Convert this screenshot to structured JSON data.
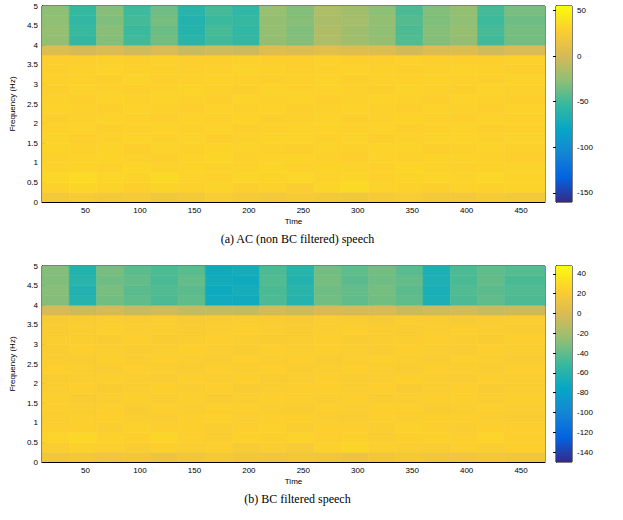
{
  "chart_data": [
    {
      "type": "heatmap",
      "title": "(a) AC (non BC filtered) speech",
      "xlabel": "Time",
      "ylabel": "Frequency (Hz)",
      "xlim": [
        10,
        472
      ],
      "xticks": [
        50,
        100,
        150,
        200,
        250,
        300,
        350,
        400,
        450
      ],
      "ylim": [
        0,
        5
      ],
      "yticks": [
        0,
        0.5,
        1,
        1.5,
        2,
        2.5,
        3,
        3.5,
        4,
        4.5,
        5
      ],
      "x_edges": [
        10,
        35,
        60,
        85,
        110,
        135,
        160,
        185,
        210,
        235,
        260,
        285,
        310,
        335,
        360,
        385,
        410,
        435,
        472
      ],
      "y_edges": [
        0,
        0.25,
        0.5,
        0.75,
        1,
        1.25,
        1.5,
        1.75,
        2,
        2.25,
        2.5,
        2.75,
        3,
        3.25,
        3.5,
        3.75,
        4,
        4.25,
        4.5,
        4.75,
        5
      ],
      "cells": [
        [
          22,
          24,
          21,
          23,
          20,
          22,
          25,
          23,
          21,
          24,
          22,
          20,
          23,
          25,
          22,
          21,
          24,
          22
        ],
        [
          30,
          33,
          31,
          29,
          32,
          30,
          31,
          28,
          30,
          27,
          33,
          35,
          31,
          30,
          29,
          31,
          30,
          32
        ],
        [
          34,
          36,
          33,
          32,
          35,
          31,
          30,
          33,
          32,
          34,
          31,
          33,
          30,
          32,
          33,
          31,
          34,
          32
        ],
        [
          31,
          32,
          30,
          33,
          31,
          32,
          30,
          31,
          33,
          30,
          32,
          31,
          30,
          33,
          31,
          30,
          32,
          31
        ],
        [
          30,
          31,
          32,
          30,
          29,
          31,
          33,
          30,
          31,
          32,
          30,
          29,
          31,
          30,
          32,
          31,
          30,
          29
        ],
        [
          32,
          30,
          31,
          29,
          31,
          30,
          32,
          31,
          30,
          29,
          31,
          30,
          32,
          31,
          29,
          30,
          31,
          30
        ],
        [
          31,
          29,
          30,
          32,
          30,
          31,
          29,
          30,
          32,
          31,
          30,
          31,
          29,
          30,
          31,
          32,
          30,
          31
        ],
        [
          30,
          31,
          29,
          30,
          32,
          30,
          31,
          29,
          30,
          31,
          32,
          30,
          31,
          29,
          30,
          31,
          29,
          30
        ],
        [
          29,
          30,
          31,
          30,
          29,
          31,
          30,
          32,
          29,
          30,
          31,
          29,
          30,
          32,
          30,
          29,
          31,
          30
        ],
        [
          31,
          30,
          29,
          31,
          30,
          29,
          31,
          30,
          31,
          29,
          30,
          31,
          30,
          29,
          31,
          30,
          29,
          31
        ],
        [
          30,
          29,
          31,
          30,
          31,
          30,
          29,
          31,
          30,
          31,
          29,
          30,
          31,
          30,
          29,
          31,
          30,
          29
        ],
        [
          29,
          31,
          30,
          29,
          30,
          32,
          30,
          29,
          31,
          30,
          31,
          30,
          29,
          31,
          30,
          29,
          31,
          30
        ],
        [
          30,
          30,
          29,
          31,
          29,
          30,
          31,
          30,
          29,
          30,
          31,
          29,
          30,
          30,
          31,
          30,
          29,
          31
        ],
        [
          29,
          30,
          31,
          30,
          30,
          29,
          30,
          31,
          30,
          29,
          30,
          31,
          30,
          29,
          30,
          31,
          30,
          29
        ],
        [
          28,
          29,
          30,
          29,
          30,
          28,
          29,
          30,
          29,
          28,
          30,
          29,
          28,
          30,
          29,
          28,
          29,
          30
        ],
        [
          5,
          0,
          3,
          -2,
          2,
          -5,
          -3,
          -4,
          6,
          4,
          8,
          6,
          5,
          -1,
          4,
          5,
          -2,
          2
        ],
        [
          -25,
          -55,
          -30,
          -50,
          -35,
          -60,
          -50,
          -55,
          -25,
          -30,
          -15,
          -20,
          -25,
          -45,
          -30,
          -25,
          -50,
          -35
        ],
        [
          -24,
          -53,
          -28,
          -52,
          -37,
          -62,
          -48,
          -56,
          -24,
          -31,
          -14,
          -21,
          -26,
          -46,
          -29,
          -24,
          -48,
          -34
        ],
        [
          -26,
          -56,
          -31,
          -49,
          -34,
          -63,
          -52,
          -54,
          -25,
          -29,
          -16,
          -19,
          -25,
          -44,
          -31,
          -26,
          -51,
          -36
        ],
        [
          -27,
          -54,
          -29,
          -51,
          -36,
          -61,
          -49,
          -57,
          -23,
          -30,
          -15,
          -20,
          -27,
          -47,
          -30,
          -25,
          -49,
          -33
        ]
      ],
      "colorbar": {
        "range": [
          -160,
          55
        ],
        "ticks": [
          -150,
          -100,
          -50,
          0,
          50
        ]
      }
    },
    {
      "type": "heatmap",
      "title": "(b) BC filtered speech",
      "xlabel": "Time",
      "ylabel": "Frequency (Hz)",
      "xlim": [
        10,
        472
      ],
      "xticks": [
        50,
        100,
        150,
        200,
        250,
        300,
        350,
        400,
        450
      ],
      "ylim": [
        0,
        5
      ],
      "yticks": [
        0,
        0.5,
        1,
        1.5,
        2,
        2.5,
        3,
        3.5,
        4,
        4.5,
        5
      ],
      "x_edges": [
        10,
        35,
        60,
        85,
        110,
        135,
        160,
        185,
        210,
        235,
        260,
        285,
        310,
        335,
        360,
        385,
        410,
        435,
        472
      ],
      "y_edges": [
        0,
        0.25,
        0.5,
        0.75,
        1,
        1.25,
        1.5,
        1.75,
        2,
        2.25,
        2.5,
        2.75,
        3,
        3.25,
        3.5,
        3.75,
        4,
        4.25,
        4.5,
        4.75,
        5
      ],
      "cells": [
        [
          14,
          16,
          13,
          15,
          12,
          14,
          17,
          15,
          13,
          16,
          14,
          12,
          15,
          17,
          14,
          13,
          16,
          14
        ],
        [
          22,
          25,
          23,
          21,
          24,
          22,
          23,
          20,
          22,
          19,
          25,
          27,
          23,
          22,
          21,
          23,
          22,
          24
        ],
        [
          26,
          28,
          25,
          24,
          27,
          23,
          22,
          25,
          24,
          26,
          23,
          25,
          22,
          24,
          25,
          23,
          26,
          24
        ],
        [
          23,
          24,
          22,
          25,
          23,
          24,
          22,
          23,
          25,
          22,
          24,
          23,
          22,
          25,
          23,
          22,
          24,
          23
        ],
        [
          22,
          23,
          24,
          22,
          21,
          23,
          25,
          22,
          23,
          24,
          22,
          21,
          23,
          22,
          24,
          23,
          22,
          21
        ],
        [
          24,
          22,
          23,
          21,
          23,
          22,
          24,
          23,
          22,
          21,
          23,
          22,
          24,
          23,
          21,
          22,
          23,
          22
        ],
        [
          23,
          21,
          22,
          24,
          22,
          23,
          21,
          22,
          24,
          23,
          22,
          23,
          21,
          22,
          23,
          24,
          22,
          23
        ],
        [
          22,
          23,
          21,
          22,
          24,
          22,
          23,
          21,
          22,
          23,
          24,
          22,
          23,
          21,
          22,
          23,
          21,
          22
        ],
        [
          21,
          22,
          23,
          22,
          21,
          23,
          22,
          24,
          21,
          22,
          23,
          21,
          22,
          24,
          22,
          21,
          23,
          22
        ],
        [
          23,
          22,
          21,
          23,
          22,
          21,
          23,
          22,
          23,
          21,
          22,
          23,
          22,
          21,
          23,
          22,
          21,
          23
        ],
        [
          22,
          21,
          23,
          22,
          23,
          22,
          21,
          23,
          22,
          23,
          21,
          22,
          23,
          22,
          21,
          23,
          22,
          21
        ],
        [
          21,
          23,
          22,
          21,
          22,
          24,
          22,
          21,
          23,
          22,
          23,
          22,
          21,
          23,
          22,
          21,
          23,
          22
        ],
        [
          22,
          22,
          21,
          23,
          21,
          22,
          23,
          22,
          21,
          22,
          23,
          21,
          22,
          22,
          23,
          22,
          21,
          23
        ],
        [
          21,
          22,
          23,
          22,
          22,
          21,
          22,
          23,
          22,
          21,
          22,
          23,
          22,
          21,
          22,
          23,
          22,
          21
        ],
        [
          20,
          21,
          22,
          21,
          22,
          20,
          21,
          22,
          21,
          20,
          22,
          21,
          20,
          22,
          21,
          20,
          21,
          22
        ],
        [
          -2,
          -6,
          -3,
          -8,
          -5,
          -10,
          -9,
          -9,
          -4,
          -6,
          -1,
          -3,
          -2,
          -7,
          -5,
          -4,
          -8,
          -6
        ],
        [
          -30,
          -60,
          -35,
          -40,
          -45,
          -40,
          -70,
          -70,
          -45,
          -60,
          -35,
          -40,
          -35,
          -40,
          -65,
          -45,
          -40,
          -45
        ],
        [
          -29,
          -62,
          -33,
          -42,
          -44,
          -41,
          -72,
          -68,
          -46,
          -58,
          -36,
          -39,
          -34,
          -41,
          -66,
          -44,
          -41,
          -44
        ],
        [
          -31,
          -59,
          -36,
          -39,
          -46,
          -39,
          -69,
          -71,
          -44,
          -61,
          -34,
          -41,
          -36,
          -39,
          -64,
          -46,
          -39,
          -46
        ],
        [
          -30,
          -61,
          -34,
          -41,
          -45,
          -42,
          -71,
          -69,
          -45,
          -59,
          -35,
          -40,
          -35,
          -42,
          -65,
          -45,
          -40,
          -43
        ]
      ],
      "colorbar": {
        "range": [
          -150,
          48
        ],
        "ticks": [
          -140,
          -120,
          -100,
          -80,
          -60,
          -40,
          -20,
          0,
          20,
          40
        ]
      }
    }
  ]
}
